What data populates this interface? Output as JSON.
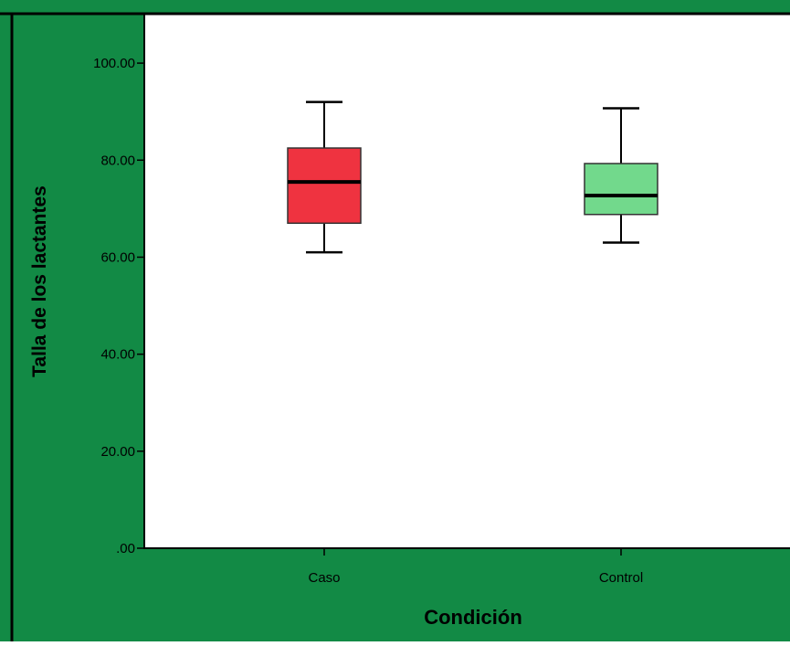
{
  "colors": {
    "background": "#128a45",
    "plot_area": "#ffffff",
    "frame": "#000000",
    "caso_fill": "#ef3340",
    "control_fill": "#72d98c"
  },
  "chart_data": {
    "type": "box",
    "xlabel": "Condición",
    "ylabel": "Talla de los lactantes",
    "ylim": [
      0,
      110
    ],
    "yticks": [
      0,
      20,
      40,
      60,
      80,
      100
    ],
    "ytick_labels": [
      ".00",
      "20.00",
      "40.00",
      "60.00",
      "80.00",
      "100.00"
    ],
    "grid": false,
    "categories": [
      "Caso",
      "Control"
    ],
    "boxes": [
      {
        "category": "Caso",
        "whisker_low": 61,
        "q1": 67,
        "median": 75.5,
        "q3": 82.5,
        "whisker_high": 92
      },
      {
        "category": "Control",
        "whisker_low": 63,
        "q1": 68.8,
        "median": 72.7,
        "q3": 79.3,
        "whisker_high": 90.7
      }
    ]
  }
}
